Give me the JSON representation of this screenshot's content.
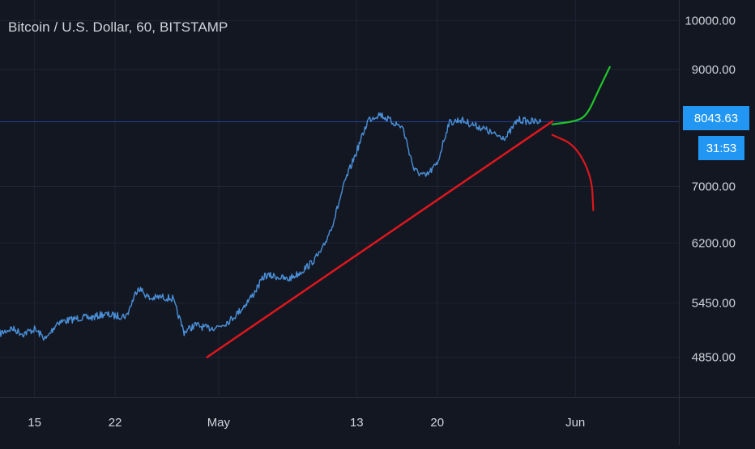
{
  "chart_title": "Bitcoin / U.S. Dollar, 60, BITSTAMP",
  "colors": {
    "background": "#131722",
    "grid": "#1e2433",
    "axis_text": "#d1d4dc",
    "price_line": "#4a90d9",
    "support_line": "#e0161d",
    "bullish_projection": "#22c42a",
    "bearish_projection": "#d8181d",
    "tag_background": "#2196f3"
  },
  "current_price_tag": "8043.63",
  "countdown_tag": "31:53",
  "chart_data": {
    "type": "line",
    "title": "Bitcoin / U.S. Dollar, 60, BITSTAMP",
    "xlabel": "",
    "ylabel": "",
    "x_tick_labels": [
      "15",
      "22",
      "May",
      "13",
      "20",
      "Jun"
    ],
    "x_ticks": [
      "2019-04-15",
      "2019-04-22",
      "2019-05-01",
      "2019-05-13",
      "2019-05-20",
      "2019-06-01"
    ],
    "y_tick_labels": [
      "10000.00",
      "9000.00",
      "8043.63",
      "7000.00",
      "6200.00",
      "5450.00",
      "4850.00"
    ],
    "y_ticks": [
      10000,
      9000,
      7000,
      6200,
      5450,
      4850
    ],
    "xlim": [
      "2019-04-12",
      "2019-06-10"
    ],
    "ylim": [
      4450,
      10450
    ],
    "y_scale": "log",
    "grid": true,
    "current_price": 8043.63,
    "series": [
      {
        "type": "price",
        "points": [
          [
            "2019-04-12",
            5100
          ],
          [
            "2019-04-13",
            5160
          ],
          [
            "2019-04-14",
            5100
          ],
          [
            "2019-04-15",
            5150
          ],
          [
            "2019-04-16",
            5040
          ],
          [
            "2019-04-17",
            5230
          ],
          [
            "2019-04-18",
            5250
          ],
          [
            "2019-04-19",
            5280
          ],
          [
            "2019-04-20",
            5280
          ],
          [
            "2019-04-21",
            5320
          ],
          [
            "2019-04-22",
            5300
          ],
          [
            "2019-04-23",
            5300
          ],
          [
            "2019-04-24",
            5640
          ],
          [
            "2019-04-25",
            5500
          ],
          [
            "2019-04-26",
            5520
          ],
          [
            "2019-04-27",
            5500
          ],
          [
            "2019-04-28",
            5120
          ],
          [
            "2019-04-29",
            5200
          ],
          [
            "2019-04-30",
            5160
          ],
          [
            "2019-05-01",
            5180
          ],
          [
            "2019-05-02",
            5250
          ],
          [
            "2019-05-03",
            5380
          ],
          [
            "2019-05-04",
            5550
          ],
          [
            "2019-05-05",
            5780
          ],
          [
            "2019-05-06",
            5770
          ],
          [
            "2019-05-07",
            5730
          ],
          [
            "2019-05-08",
            5810
          ],
          [
            "2019-05-09",
            5930
          ],
          [
            "2019-05-10",
            6100
          ],
          [
            "2019-05-11",
            6500
          ],
          [
            "2019-05-12",
            7080
          ],
          [
            "2019-05-13",
            7550
          ],
          [
            "2019-05-14",
            8080
          ],
          [
            "2019-05-15",
            8180
          ],
          [
            "2019-05-16",
            8050
          ],
          [
            "2019-05-17",
            7950
          ],
          [
            "2019-05-18",
            7250
          ],
          [
            "2019-05-19",
            7150
          ],
          [
            "2019-05-20",
            7350
          ],
          [
            "2019-05-21",
            8020
          ],
          [
            "2019-05-22",
            8080
          ],
          [
            "2019-05-23",
            8000
          ],
          [
            "2019-05-24",
            7930
          ],
          [
            "2019-05-25",
            7820
          ],
          [
            "2019-05-26",
            7780
          ],
          [
            "2019-05-27",
            8080
          ],
          [
            "2019-05-28",
            8050
          ],
          [
            "2019-05-29",
            8043.63
          ]
        ]
      },
      {
        "type": "support_trendline",
        "points": [
          [
            "2019-04-30",
            4850
          ],
          [
            "2019-05-30",
            8050
          ]
        ]
      },
      {
        "type": "bullish_projection",
        "points": [
          [
            "2019-05-30",
            8000
          ],
          [
            "2019-06-01",
            8050
          ],
          [
            "2019-06-02",
            8150
          ],
          [
            "2019-06-03",
            8600
          ],
          [
            "2019-06-04",
            9050
          ]
        ]
      },
      {
        "type": "bearish_projection",
        "points": [
          [
            "2019-05-30",
            7820
          ],
          [
            "2019-06-01",
            7650
          ],
          [
            "2019-06-02",
            7150
          ],
          [
            "2019-06-02",
            6650
          ]
        ]
      }
    ]
  }
}
